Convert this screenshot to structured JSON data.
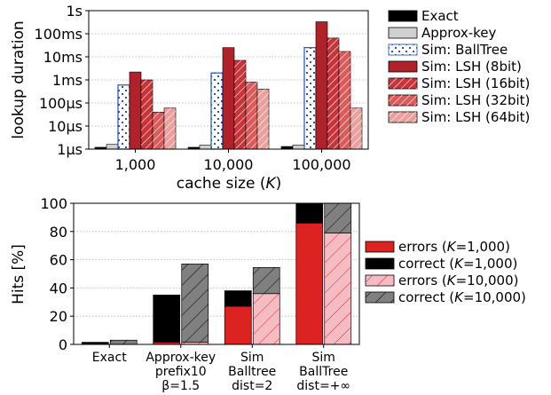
{
  "chart_data": [
    {
      "type": "bar",
      "categories": [
        "1,000",
        "10,000",
        "100,000"
      ],
      "xlabel_main": "cache size (",
      "xlabel_var": "K",
      "xlabel_tail": ")",
      "ylabel": "lookup duration",
      "yscale": "log",
      "ylim_seconds": [
        1e-06,
        1
      ],
      "yticks": [
        {
          "value": 1,
          "label": "1s"
        },
        {
          "value": 0.1,
          "label": "100ms"
        },
        {
          "value": 0.01,
          "label": "10ms"
        },
        {
          "value": 0.001,
          "label": "1ms"
        },
        {
          "value": 0.0001,
          "label": "100µs"
        },
        {
          "value": 1e-05,
          "label": "10µs"
        },
        {
          "value": 1e-06,
          "label": "1µs"
        }
      ],
      "grid": "horizontal dotted",
      "legend_position": "right",
      "series": [
        {
          "name": "Exact",
          "color": "#000000",
          "pattern": "solid",
          "values": [
            1.2e-06,
            1.2e-06,
            1.3e-06
          ]
        },
        {
          "name": "Approx-key",
          "color": "#d0d0d0",
          "pattern": "solid",
          "values": [
            1.6e-06,
            1.5e-06,
            1.5e-06
          ]
        },
        {
          "name": "Sim: BallTree",
          "color": "#8ab4ee",
          "pattern": "dots",
          "values": [
            0.0006,
            0.002,
            0.025
          ]
        },
        {
          "name": "Sim: LSH (8bit)",
          "color": "#b0222a",
          "pattern": "solid",
          "values": [
            0.0022,
            0.025,
            0.33
          ]
        },
        {
          "name": "Sim: LSH (16bit)",
          "color": "#c8343a",
          "pattern": "hatch",
          "values": [
            0.001,
            0.007,
            0.065
          ]
        },
        {
          "name": "Sim: LSH (32bit)",
          "color": "#dc5a5a",
          "pattern": "hatch",
          "values": [
            4e-05,
            0.0008,
            0.017
          ]
        },
        {
          "name": "Sim: LSH (64bit)",
          "color": "#eaa09c",
          "pattern": "hatch",
          "values": [
            6e-05,
            0.0004,
            6e-05
          ]
        }
      ]
    },
    {
      "type": "bar",
      "stacked": true,
      "categories": [
        [
          "Exact"
        ],
        [
          "Approx-key",
          "prefix10",
          "β=1.5"
        ],
        [
          "Sim",
          "Balltree",
          "dist=2"
        ],
        [
          "Sim",
          "BallTree",
          "dist=+∞"
        ]
      ],
      "ylabel": "Hits [%]",
      "ylim": [
        0,
        100
      ],
      "yticks": [
        0,
        20,
        40,
        60,
        80,
        100
      ],
      "grid": "horizontal dotted",
      "legend_position": "right",
      "series": [
        {
          "name_main": "errors (",
          "name_var": "K",
          "name_tail": "=1,000)",
          "color": "#dd2222",
          "group": "K=1,000",
          "part": "bottom",
          "values": [
            0,
            1.5,
            27,
            86
          ]
        },
        {
          "name_main": "correct (",
          "name_var": "K",
          "name_tail": "=1,000)",
          "color": "#000000",
          "group": "K=1,000",
          "part": "top",
          "values": [
            1.5,
            33.5,
            11,
            14
          ]
        },
        {
          "name_main": "errors (",
          "name_var": "K",
          "name_tail": "=10,000)",
          "color": "#f6bcc4",
          "group": "K=10,000",
          "part": "bottom",
          "values": [
            0,
            1.5,
            36,
            79
          ]
        },
        {
          "name_main": "correct (",
          "name_var": "K",
          "name_tail": "=10,000)",
          "color": "#808080",
          "group": "K=10,000",
          "part": "top",
          "values": [
            3,
            55.5,
            18.5,
            21
          ]
        }
      ]
    }
  ]
}
